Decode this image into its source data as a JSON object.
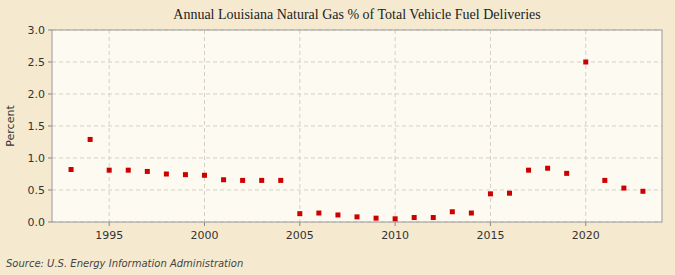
{
  "chart_data": {
    "type": "scatter",
    "title": "Annual Louisiana Natural Gas % of Total Vehicle Fuel Deliveries",
    "ylabel": "Percent",
    "annotations": [
      "Source: U.S. Energy Information Administration"
    ],
    "x": [
      1993,
      1994,
      1995,
      1996,
      1997,
      1998,
      1999,
      2000,
      2001,
      2002,
      2003,
      2004,
      2005,
      2006,
      2007,
      2008,
      2009,
      2010,
      2011,
      2012,
      2013,
      2014,
      2015,
      2016,
      2017,
      2018,
      2019,
      2020,
      2021,
      2022,
      2023
    ],
    "values": [
      0.82,
      1.29,
      0.81,
      0.81,
      0.79,
      0.75,
      0.74,
      0.73,
      0.66,
      0.65,
      0.65,
      0.65,
      0.13,
      0.14,
      0.11,
      0.08,
      0.06,
      0.05,
      0.07,
      0.07,
      0.16,
      0.14,
      0.44,
      0.45,
      0.81,
      0.84,
      0.76,
      2.5,
      0.65,
      0.53,
      0.48
    ],
    "color": "#cc0000",
    "marker": "square",
    "xlim": [
      1992,
      2024
    ],
    "ylim": [
      0.0,
      3.0
    ],
    "xticks": [
      1995,
      2000,
      2005,
      2010,
      2015,
      2020
    ],
    "yticks": [
      {
        "value": 0.0,
        "label": "0.0"
      },
      0.5,
      {
        "value": 1.0,
        "label": "1.0"
      },
      1.5,
      {
        "value": 2.0,
        "label": "2.0"
      },
      2.5,
      {
        "value": 3.0,
        "label": "3.0"
      }
    ],
    "grid": true
  }
}
